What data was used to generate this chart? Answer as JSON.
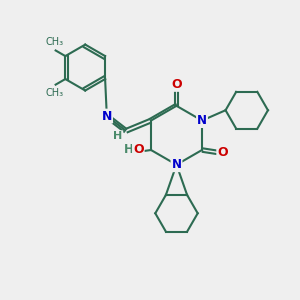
{
  "bg_color": "#efefef",
  "bond_color": "#2d6b52",
  "bond_width": 1.5,
  "atom_colors": {
    "N": "#0000cc",
    "O": "#cc0000",
    "H": "#4a8a6a",
    "C": "#2d6b52"
  },
  "figsize": [
    3.0,
    3.0
  ],
  "dpi": 100
}
